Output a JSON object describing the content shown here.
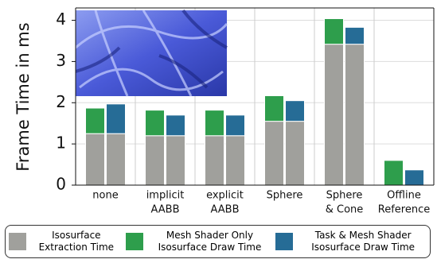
{
  "chart_data": {
    "type": "bar",
    "y_label": "Frame Time in ms",
    "categories": [
      [
        "none"
      ],
      [
        "implicit",
        "AABB"
      ],
      [
        "explicit",
        "AABB"
      ],
      [
        "Sphere"
      ],
      [
        "Sphere",
        "& Cone"
      ],
      [
        "Offline",
        "Reference"
      ]
    ],
    "series": [
      {
        "name": "Isosurface Extraction Time",
        "color": "#a0a09c",
        "values": [
          1.25,
          1.2,
          1.2,
          1.55,
          3.42,
          0
        ]
      },
      {
        "name": "Mesh Shader Only Isosurface Draw Time",
        "color": "#2e9e4c",
        "values": [
          0.62,
          0.62,
          0.62,
          0.62,
          0.62,
          0.6
        ]
      },
      {
        "name": "Task & Mesh Shader Isosurface Draw Time",
        "color": "#266c96",
        "values": [
          0.72,
          0.5,
          0.5,
          0.5,
          0.41,
          0.37
        ]
      }
    ],
    "ylim": [
      0,
      4.3
    ],
    "yticks": [
      0,
      1,
      2,
      3,
      4
    ],
    "grid": true
  }
}
